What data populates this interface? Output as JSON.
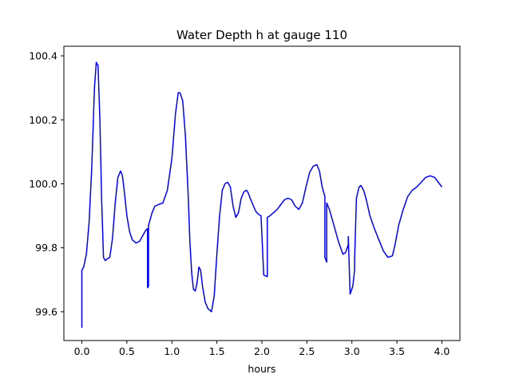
{
  "chart_data": {
    "type": "line",
    "title": "Water Depth h at gauge 110",
    "xlabel": "hours",
    "ylabel": "",
    "xlim": [
      -0.2,
      4.2
    ],
    "ylim": [
      99.51,
      100.43
    ],
    "xticks": [
      0.0,
      0.5,
      1.0,
      1.5,
      2.0,
      2.5,
      3.0,
      3.5,
      4.0
    ],
    "xtick_labels": [
      "0.0",
      "0.5",
      "1.0",
      "1.5",
      "2.0",
      "2.5",
      "3.0",
      "3.5",
      "4.0"
    ],
    "yticks": [
      99.6,
      99.8,
      100.0,
      100.2,
      100.4
    ],
    "ytick_labels": [
      "99.6",
      "99.8",
      "100.0",
      "100.2",
      "100.4"
    ],
    "grid": false,
    "legend": "none",
    "series": [
      {
        "color": "#0000ff",
        "x": [
          0.0,
          0.0,
          0.02,
          0.05,
          0.08,
          0.11,
          0.14,
          0.16,
          0.18,
          0.2,
          0.22,
          0.24,
          0.26,
          0.28,
          0.31,
          0.34,
          0.37,
          0.4,
          0.43,
          0.45,
          0.47,
          0.5,
          0.53,
          0.56,
          0.6,
          0.64,
          0.68,
          0.71,
          0.73,
          0.73,
          0.74,
          0.74,
          0.75,
          0.78,
          0.81,
          0.85,
          0.9,
          0.95,
          1.0,
          1.04,
          1.07,
          1.09,
          1.12,
          1.15,
          1.18,
          1.2,
          1.22,
          1.24,
          1.26,
          1.28,
          1.3,
          1.32,
          1.34,
          1.37,
          1.4,
          1.44,
          1.47,
          1.5,
          1.53,
          1.56,
          1.59,
          1.62,
          1.65,
          1.68,
          1.71,
          1.74,
          1.77,
          1.8,
          1.83,
          1.85,
          1.87,
          1.9,
          1.93,
          1.96,
          1.99,
          2.02,
          2.02,
          2.06,
          2.06,
          2.09,
          2.13,
          2.17,
          2.21,
          2.25,
          2.29,
          2.33,
          2.37,
          2.41,
          2.45,
          2.49,
          2.53,
          2.57,
          2.61,
          2.64,
          2.67,
          2.7,
          2.7,
          2.72,
          2.72,
          2.75,
          2.8,
          2.85,
          2.9,
          2.93,
          2.96,
          2.96,
          2.98,
          3.01,
          3.03,
          3.03,
          3.05,
          3.08,
          3.1,
          3.13,
          3.16,
          3.2,
          3.25,
          3.3,
          3.35,
          3.4,
          3.45,
          3.48,
          3.52,
          3.57,
          3.62,
          3.67,
          3.72,
          3.77,
          3.82,
          3.87,
          3.92,
          3.96,
          4.0
        ],
        "y": [
          99.55,
          99.73,
          99.74,
          99.78,
          99.88,
          100.05,
          100.3,
          100.38,
          100.37,
          100.2,
          99.95,
          99.77,
          99.76,
          99.765,
          99.77,
          99.83,
          99.94,
          100.02,
          100.04,
          100.025,
          99.98,
          99.9,
          99.85,
          99.825,
          99.815,
          99.82,
          99.84,
          99.855,
          99.86,
          99.675,
          99.68,
          99.87,
          99.88,
          99.91,
          99.93,
          99.935,
          99.94,
          99.98,
          100.08,
          100.22,
          100.285,
          100.285,
          100.26,
          100.15,
          99.97,
          99.82,
          99.72,
          99.67,
          99.665,
          99.69,
          99.74,
          99.73,
          99.68,
          99.63,
          99.61,
          99.6,
          99.65,
          99.78,
          99.9,
          99.98,
          100.0,
          100.005,
          99.99,
          99.93,
          99.895,
          99.91,
          99.955,
          99.975,
          99.98,
          99.97,
          99.955,
          99.935,
          99.915,
          99.905,
          99.9,
          99.715,
          99.715,
          99.71,
          99.895,
          99.9,
          99.91,
          99.92,
          99.935,
          99.95,
          99.955,
          99.95,
          99.93,
          99.92,
          99.94,
          99.99,
          100.035,
          100.055,
          100.06,
          100.04,
          99.99,
          99.96,
          99.77,
          99.755,
          99.94,
          99.92,
          99.87,
          99.82,
          99.78,
          99.785,
          99.81,
          99.835,
          99.655,
          99.68,
          99.73,
          99.76,
          99.955,
          99.99,
          99.995,
          99.98,
          99.95,
          99.9,
          99.86,
          99.825,
          99.79,
          99.77,
          99.775,
          99.81,
          99.87,
          99.92,
          99.96,
          99.98,
          99.99,
          100.005,
          100.02,
          100.025,
          100.02,
          100.005,
          99.99
        ]
      }
    ]
  }
}
